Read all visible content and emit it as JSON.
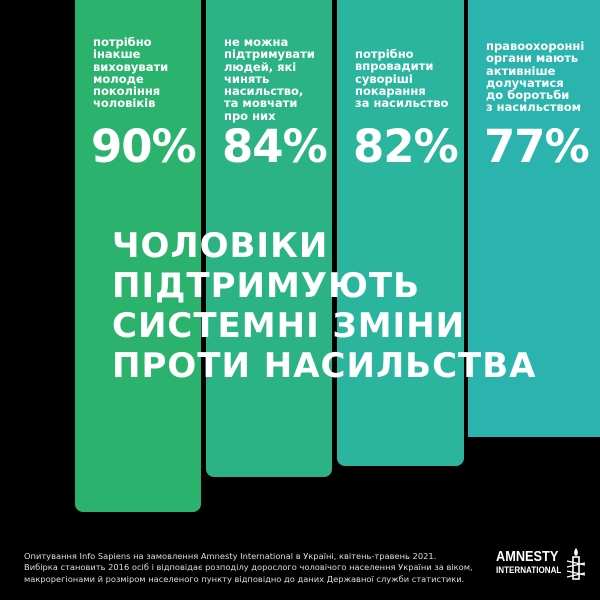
{
  "chart_data": {
    "type": "bar",
    "title": "ЧОЛОВІКИ ПІДТРИМУЮТЬ СИСТЕМНІ ЗМІНИ ПРОТИ НАСИЛЬСТВА",
    "title_lines": [
      "ЧОЛОВІКИ",
      "ПІДТРИМУЮТЬ",
      "СИСТЕМНІ ЗМІНИ",
      "ПРОТИ НАСИЛЬСТВА"
    ],
    "unit": "%",
    "ylim": [
      0,
      100
    ],
    "categories": [
      "потрібно\nінакше\nвиховувати\nмолоде\nпокоління\nчоловіків",
      "не можна\nпідтримувати\nлюдей, які чинять\nнасильство,\nта мовчати\nпро них",
      "потрібно\nвпровадити\nсуворіші\nпокарання\nза насильство",
      "правоохоронні\nоргани мають\nактивніше\nдолучатися\nдо боротьби\nз насильством"
    ],
    "values": [
      90,
      84,
      82,
      77
    ],
    "value_labels": [
      "90%",
      "84%",
      "82%",
      "77%"
    ],
    "colors": [
      "#2bb36d",
      "#2bb386",
      "#2cb59e",
      "#2ab4ad"
    ]
  },
  "footnote": [
    "Опитування Info Sapiens на замовлення Amnesty International в Україні, квітень-травень 2021.",
    "Вибірка становить 2016 осіб і відповідає розподілу дорослого чоловічого населення України за віком,",
    "макрорегіонами й розміром населеного пункту відповідно до даних Державної служби статистики."
  ],
  "logo": {
    "line1": "AMNESTY",
    "line2": "INTERNATIONAL",
    "icon": "candle-barbed-wire-icon"
  }
}
